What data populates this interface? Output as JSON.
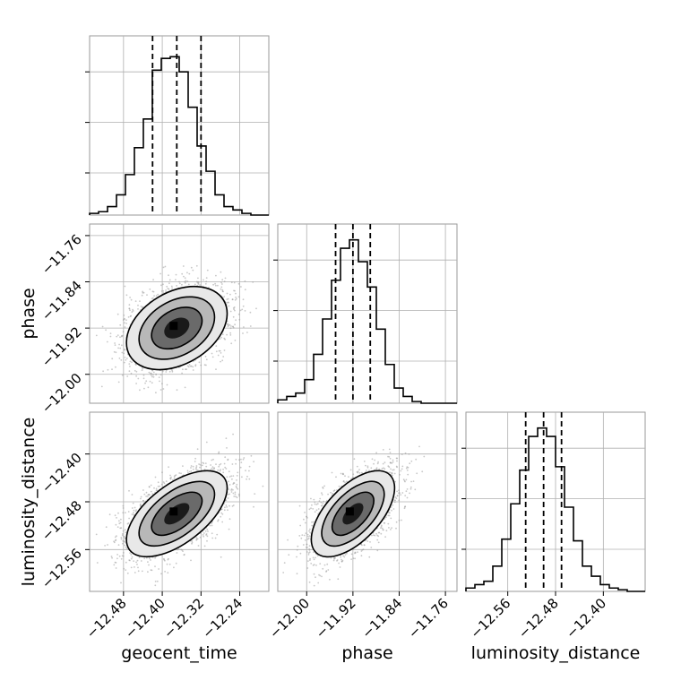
{
  "chart_data": {
    "type": "corner",
    "parameters": [
      {
        "name": "geocent_time",
        "label": "geocent_time",
        "range": [
          -12.55,
          -12.18
        ],
        "ticks": [
          -12.48,
          -12.4,
          -12.32,
          -12.24
        ],
        "tick_labels": [
          "−12.48",
          "−12.40",
          "−12.32",
          "−12.24"
        ],
        "quantiles": [
          -12.42,
          -12.37,
          -12.32
        ],
        "hist_counts": [
          0.01,
          0.02,
          0.05,
          0.12,
          0.24,
          0.4,
          0.57,
          0.86,
          0.93,
          0.94,
          0.85,
          0.64,
          0.41,
          0.26,
          0.12,
          0.05,
          0.03,
          0.01,
          0.0,
          0.0
        ]
      },
      {
        "name": "phase",
        "label": "phase",
        "range": [
          -12.05,
          -11.74
        ],
        "ticks": [
          -12.0,
          -11.92,
          -11.84,
          -11.76
        ],
        "tick_labels": [
          "−12.00",
          "−11.92",
          "−11.84",
          "−11.76"
        ],
        "quantiles": [
          -11.95,
          -11.92,
          -11.89
        ],
        "hist_counts": [
          0.02,
          0.04,
          0.06,
          0.14,
          0.29,
          0.5,
          0.73,
          0.92,
          0.97,
          0.84,
          0.69,
          0.44,
          0.23,
          0.09,
          0.04,
          0.01,
          0.0,
          0.0,
          0.0,
          0.0
        ]
      },
      {
        "name": "luminosity_distance",
        "label": "luminosity_distance",
        "range": [
          -12.63,
          -12.33
        ],
        "ticks": [
          -12.56,
          -12.48,
          -12.4
        ],
        "tick_labels": [
          "−12.56",
          "−12.48",
          "−12.40"
        ],
        "quantiles": [
          -12.53,
          -12.5,
          -12.47
        ],
        "hist_counts": [
          0.02,
          0.04,
          0.06,
          0.15,
          0.31,
          0.52,
          0.72,
          0.92,
          0.97,
          0.92,
          0.74,
          0.5,
          0.3,
          0.15,
          0.09,
          0.04,
          0.02,
          0.01,
          0.0,
          0.0
        ]
      }
    ],
    "pairs": [
      {
        "x": "geocent_time",
        "y": "phase",
        "mean": [
          -12.37,
          -11.92
        ],
        "sigma": [
          0.052,
          0.036
        ],
        "rho": 0.35
      },
      {
        "x": "geocent_time",
        "y": "luminosity_distance",
        "mean": [
          -12.37,
          -12.5
        ],
        "sigma": [
          0.052,
          0.036
        ],
        "rho": 0.6
      },
      {
        "x": "phase",
        "y": "luminosity_distance",
        "mean": [
          -11.92,
          -12.5
        ],
        "sigma": [
          0.036,
          0.036
        ],
        "rho": 0.6
      }
    ],
    "contour_levels_sigma": [
      0.5,
      1.0,
      1.5,
      2.0
    ],
    "grid": true,
    "colors": {
      "hist": "#000000",
      "points": "#9a9a9a",
      "grid": "#b0b0b0",
      "frame": "#9a9a9a"
    }
  }
}
